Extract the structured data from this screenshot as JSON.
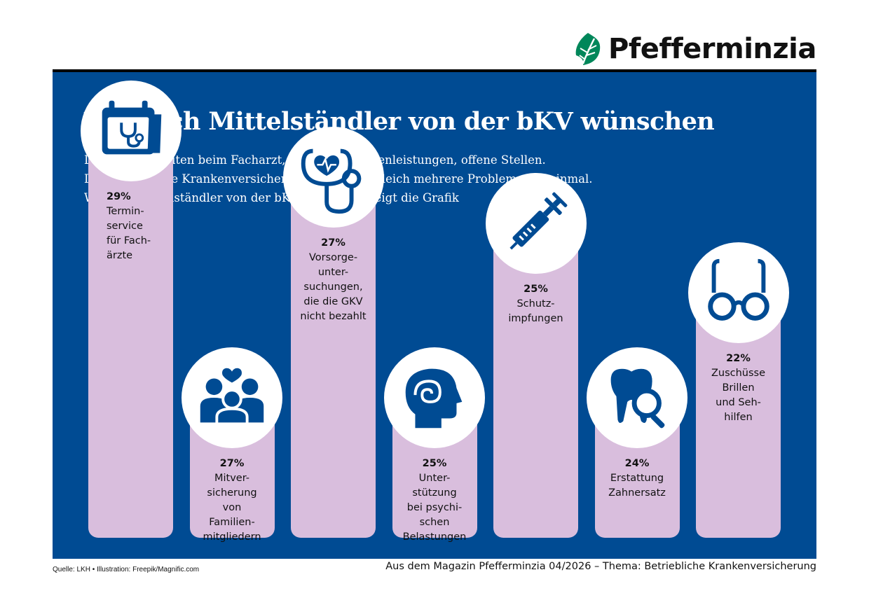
{
  "brand": {
    "name": "Pfefferminzia",
    "leaf_color": "#00875a"
  },
  "colors": {
    "panel": "#004b93",
    "bar": "#d9bedd",
    "icon": "#004b93"
  },
  "title": "Was sich Mittelständler von der bKV wünschen",
  "lead": [
    "Lange Wartezeiten beim Facharzt, unsichere Kassenleistungen, offene Stellen.",
    "Die betriebliche Krankenversicherung (bKV) löst gleich mehrere Probleme auf einmal.",
    "Was sich Mittelständler von der bKV wünschen, zeigt die Grafik"
  ],
  "chart_data": {
    "type": "bar",
    "categories": [
      "Termin-\nservice\nfür Fach-\närzte",
      "Mitver-\nsicherung\nvon\nFamilien-\nmitgliedern",
      "Vorsorge-\nunter-\nsuchungen,\ndie die GKV\nnicht bezahlt",
      "Unter-\nstützung\nbei psychi-\nschen\nBelastungen",
      "Schutz-\nimpfungen",
      "Erstattung\nZahnersatz",
      "Zuschüsse\nBrillen\nund Seh-\nhilfen"
    ],
    "values": [
      29,
      27,
      27,
      25,
      25,
      24,
      22
    ],
    "value_labels": [
      "29%",
      "27%",
      "27%",
      "25%",
      "25%",
      "24%",
      "22%"
    ],
    "icons": [
      "calendar-stethoscope-icon",
      "family-icon",
      "stethoscope-heart-icon",
      "head-spiral-icon",
      "syringe-icon",
      "tooth-magnifier-icon",
      "glasses-icon"
    ]
  },
  "footer": {
    "source": "Quelle: LKH • Illustration: Freepik/Magnific.com",
    "credit": "Aus dem Magazin Pfefferminzia 04/2026 – Thema: Betriebliche Krankenversicherung"
  }
}
